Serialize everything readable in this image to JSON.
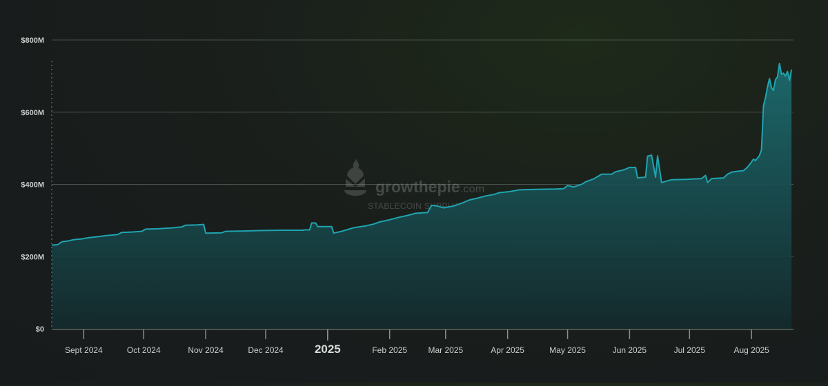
{
  "watermark": {
    "brand_name": "growthepie",
    "brand_suffix": ".com",
    "subtitle": "STABLECOIN SUPPLY"
  },
  "colors": {
    "line": "#1fa4b0",
    "fill_top": "#1c6e72",
    "fill_bottom": "#142a2c",
    "grid": "#4a504d",
    "axis": "#5e6461"
  },
  "chart_data": {
    "type": "area",
    "title": "",
    "xlabel": "",
    "ylabel": "",
    "x_range": [
      "2024-08-16",
      "2025-08-22"
    ],
    "ylim": [
      0,
      800
    ],
    "y_unit": "$M",
    "y_ticks": [
      {
        "value": 0,
        "label": "$0"
      },
      {
        "value": 200,
        "label": "$200M"
      },
      {
        "value": 400,
        "label": "$400M"
      },
      {
        "value": 600,
        "label": "$600M"
      },
      {
        "value": 800,
        "label": "$800M"
      }
    ],
    "x_ticks": [
      {
        "date": "2024-09-01",
        "label": "Sept 2024",
        "emphasis": false
      },
      {
        "date": "2024-10-01",
        "label": "Oct 2024",
        "emphasis": false
      },
      {
        "date": "2024-11-01",
        "label": "Nov 2024",
        "emphasis": false
      },
      {
        "date": "2024-12-01",
        "label": "Dec 2024",
        "emphasis": false
      },
      {
        "date": "2025-01-01",
        "label": "2025",
        "emphasis": true
      },
      {
        "date": "2025-02-01",
        "label": "Feb 2025",
        "emphasis": false
      },
      {
        "date": "2025-03-01",
        "label": "Mar 2025",
        "emphasis": false
      },
      {
        "date": "2025-04-01",
        "label": "Apr 2025",
        "emphasis": false
      },
      {
        "date": "2025-05-01",
        "label": "May 2025",
        "emphasis": false
      },
      {
        "date": "2025-06-01",
        "label": "Jun 2025",
        "emphasis": false
      },
      {
        "date": "2025-07-01",
        "label": "Jul 2025",
        "emphasis": false
      },
      {
        "date": "2025-08-01",
        "label": "Aug 2025",
        "emphasis": false
      }
    ],
    "grid": true,
    "legend": "none",
    "series": [
      {
        "name": "",
        "points": [
          [
            "2024-08-16",
            232
          ],
          [
            "2024-08-19",
            233
          ],
          [
            "2024-08-21",
            241
          ],
          [
            "2024-08-24",
            243
          ],
          [
            "2024-08-27",
            247
          ],
          [
            "2024-08-31",
            249
          ],
          [
            "2024-09-03",
            252
          ],
          [
            "2024-09-08",
            255
          ],
          [
            "2024-09-12",
            258
          ],
          [
            "2024-09-18",
            261
          ],
          [
            "2024-09-20",
            267
          ],
          [
            "2024-09-25",
            268
          ],
          [
            "2024-09-30",
            270
          ],
          [
            "2024-10-02",
            276
          ],
          [
            "2024-10-08",
            277
          ],
          [
            "2024-10-14",
            279
          ],
          [
            "2024-10-20",
            282
          ],
          [
            "2024-10-22",
            287
          ],
          [
            "2024-10-28",
            288
          ],
          [
            "2024-10-31",
            289
          ],
          [
            "2024-11-01",
            265
          ],
          [
            "2024-11-09",
            266
          ],
          [
            "2024-11-11",
            270
          ],
          [
            "2024-11-20",
            271
          ],
          [
            "2024-11-28",
            272
          ],
          [
            "2024-12-10",
            273
          ],
          [
            "2024-12-20",
            273
          ],
          [
            "2024-12-20",
            274
          ],
          [
            "2024-12-23",
            274
          ],
          [
            "2024-12-24",
            293
          ],
          [
            "2024-12-26",
            293
          ],
          [
            "2024-12-27",
            283
          ],
          [
            "2025-01-03",
            283
          ],
          [
            "2025-01-04",
            265
          ],
          [
            "2025-01-08",
            270
          ],
          [
            "2025-01-11",
            275
          ],
          [
            "2025-01-14",
            280
          ],
          [
            "2025-01-20",
            285
          ],
          [
            "2025-01-24",
            290
          ],
          [
            "2025-01-27",
            296
          ],
          [
            "2025-02-01",
            302
          ],
          [
            "2025-02-05",
            308
          ],
          [
            "2025-02-10",
            314
          ],
          [
            "2025-02-14",
            320
          ],
          [
            "2025-02-20",
            322
          ],
          [
            "2025-02-22",
            342
          ],
          [
            "2025-02-25",
            340
          ],
          [
            "2025-02-28",
            335
          ],
          [
            "2025-03-05",
            340
          ],
          [
            "2025-03-10",
            350
          ],
          [
            "2025-03-13",
            357
          ],
          [
            "2025-03-17",
            362
          ],
          [
            "2025-03-21",
            368
          ],
          [
            "2025-03-25",
            372
          ],
          [
            "2025-03-28",
            377
          ],
          [
            "2025-04-02",
            380
          ],
          [
            "2025-04-07",
            385
          ],
          [
            "2025-04-15",
            386
          ],
          [
            "2025-04-25",
            387
          ],
          [
            "2025-04-29",
            388
          ],
          [
            "2025-05-01",
            397
          ],
          [
            "2025-05-04",
            393
          ],
          [
            "2025-05-08",
            400
          ],
          [
            "2025-05-10",
            407
          ],
          [
            "2025-05-14",
            415
          ],
          [
            "2025-05-18",
            428
          ],
          [
            "2025-05-23",
            428
          ],
          [
            "2025-05-25",
            435
          ],
          [
            "2025-05-29",
            440
          ],
          [
            "2025-06-01",
            447
          ],
          [
            "2025-06-04",
            447
          ],
          [
            "2025-06-05",
            418
          ],
          [
            "2025-06-09",
            420
          ],
          [
            "2025-06-10",
            478
          ],
          [
            "2025-06-12",
            481
          ],
          [
            "2025-06-14",
            420
          ],
          [
            "2025-06-15",
            479
          ],
          [
            "2025-06-17",
            405
          ],
          [
            "2025-06-20",
            410
          ],
          [
            "2025-06-22",
            413
          ],
          [
            "2025-06-29",
            414
          ],
          [
            "2025-07-03",
            415
          ],
          [
            "2025-07-07",
            416
          ],
          [
            "2025-07-09",
            425
          ],
          [
            "2025-07-10",
            405
          ],
          [
            "2025-07-12",
            416
          ],
          [
            "2025-07-18",
            418
          ],
          [
            "2025-07-20",
            428
          ],
          [
            "2025-07-22",
            434
          ],
          [
            "2025-07-26",
            437
          ],
          [
            "2025-07-28",
            438
          ],
          [
            "2025-07-30",
            448
          ],
          [
            "2025-08-01",
            462
          ],
          [
            "2025-08-02",
            470
          ],
          [
            "2025-08-03",
            466
          ],
          [
            "2025-08-05",
            480
          ],
          [
            "2025-08-06",
            496
          ],
          [
            "2025-08-07",
            618
          ],
          [
            "2025-08-08",
            640
          ],
          [
            "2025-08-09",
            670
          ],
          [
            "2025-08-10",
            693
          ],
          [
            "2025-08-11",
            668
          ],
          [
            "2025-08-12",
            660
          ],
          [
            "2025-08-13",
            690
          ],
          [
            "2025-08-14",
            698
          ],
          [
            "2025-08-15",
            735
          ],
          [
            "2025-08-16",
            705
          ],
          [
            "2025-08-17",
            708
          ],
          [
            "2025-08-18",
            700
          ],
          [
            "2025-08-19",
            713
          ],
          [
            "2025-08-20",
            688
          ],
          [
            "2025-08-21",
            718
          ]
        ]
      }
    ]
  }
}
